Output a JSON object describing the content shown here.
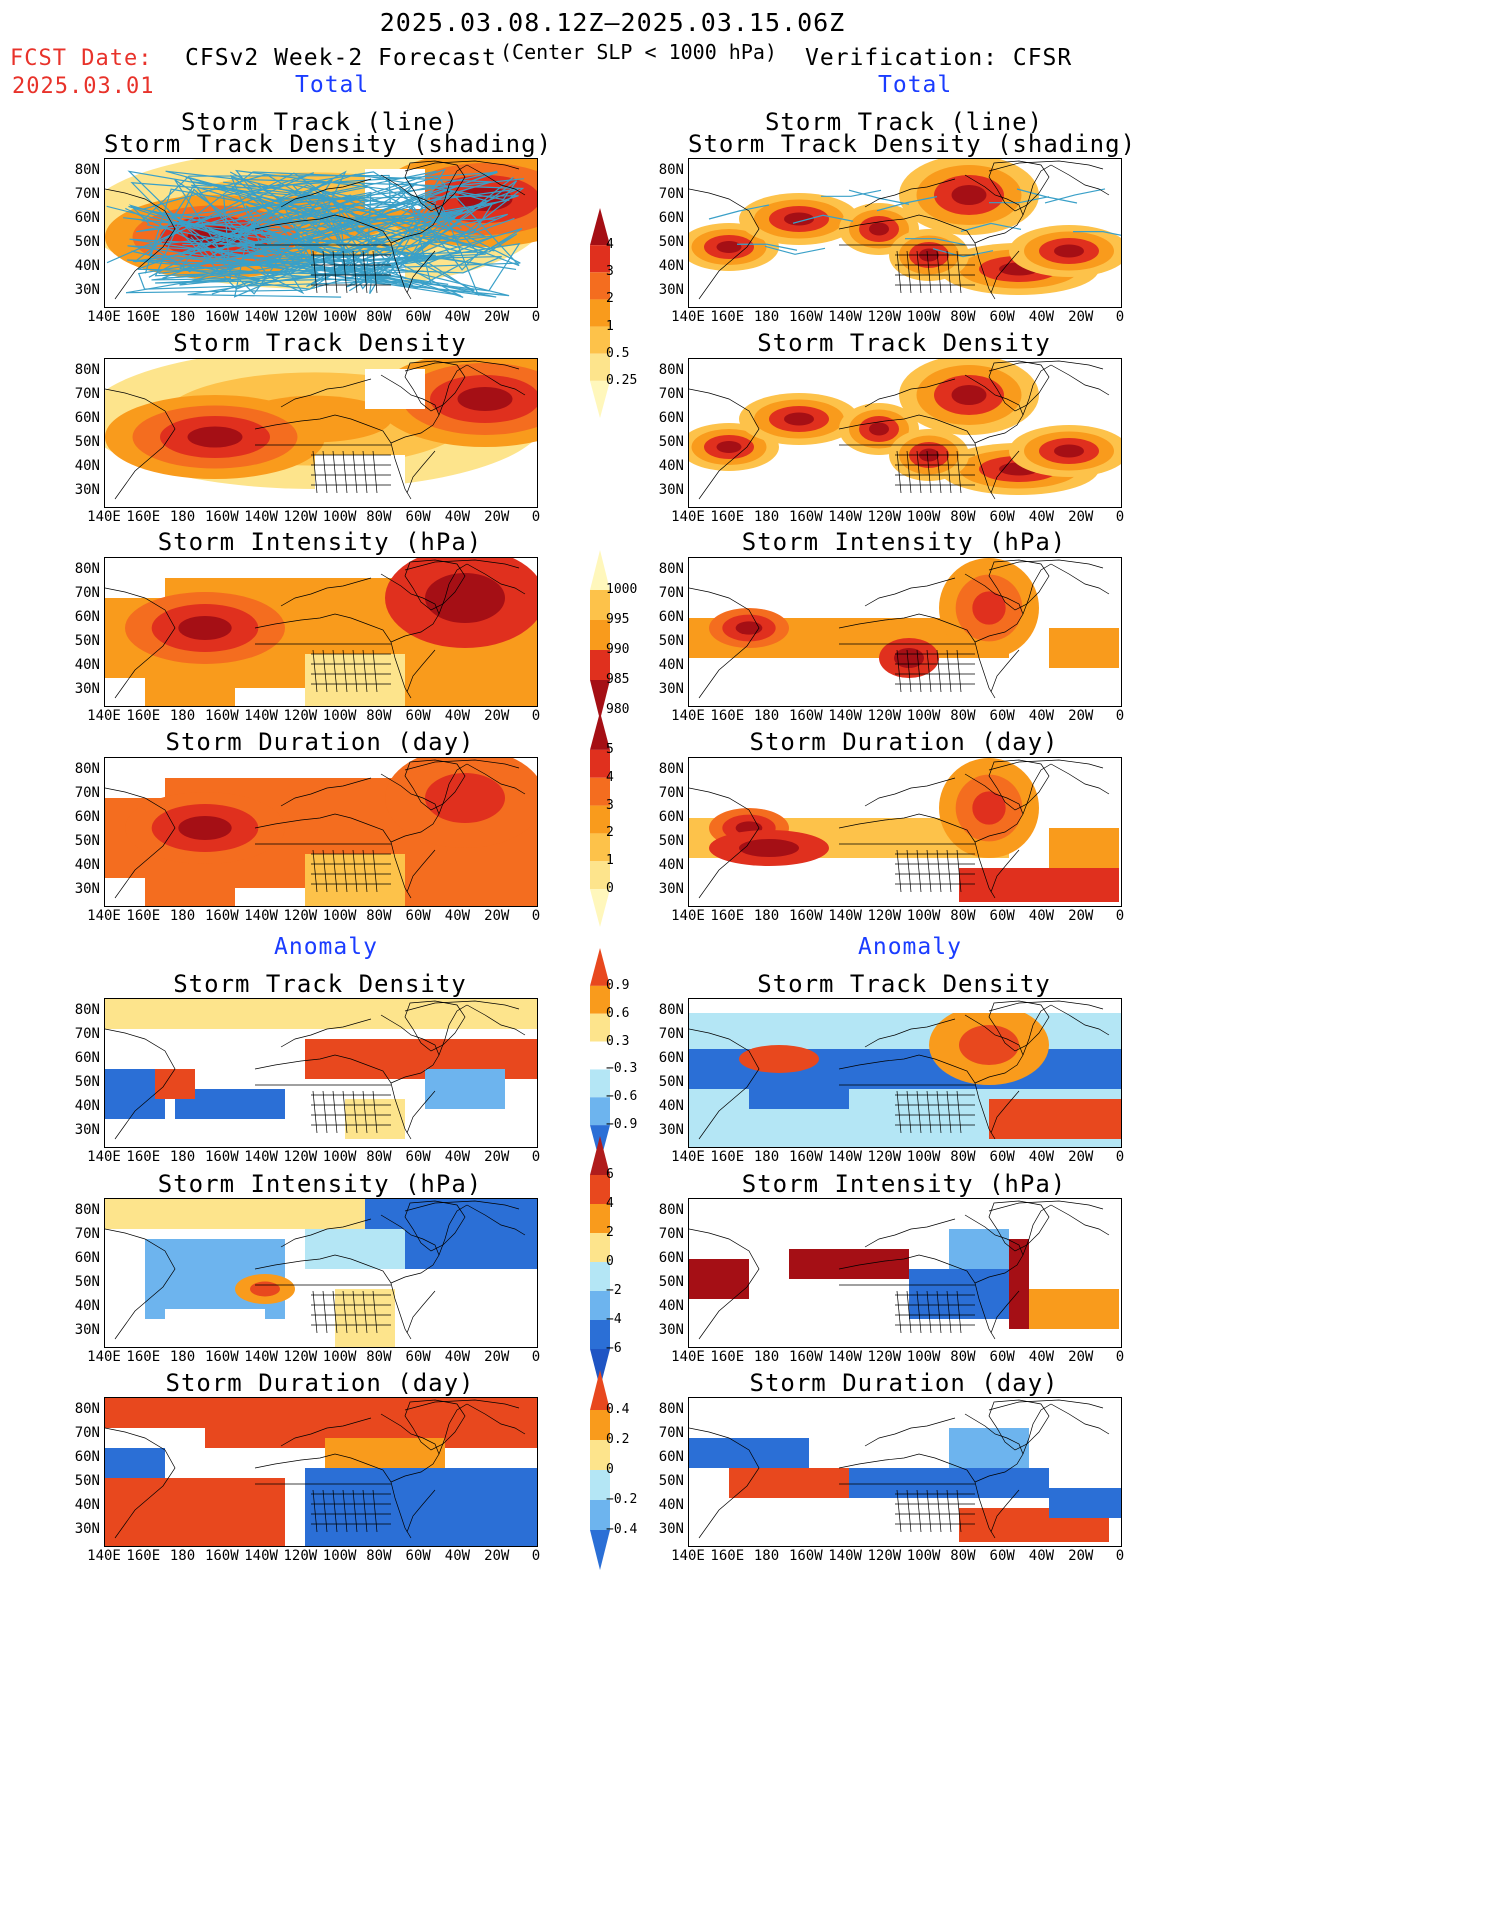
{
  "header": {
    "date_range": "2025.03.08.12Z—2025.03.15.06Z",
    "subtitle": "(Center SLP < 1000 hPa)",
    "fcst_label": "FCST Date:",
    "fcst_date": "2025.03.01",
    "left_title": "CFSv2 Week-2 Forecast",
    "right_title": "Verification: CFSR",
    "total_label": "Total",
    "anomaly_label": "Anomaly"
  },
  "panel_titles": {
    "track_line": "Storm Track (line)",
    "track_shading": "Storm Track Density (shading)",
    "density": "Storm Track Density",
    "intensity": "Storm Intensity (hPa)",
    "duration": "Storm Duration (day)"
  },
  "axes": {
    "lat_labels": [
      "80N",
      "70N",
      "60N",
      "50N",
      "40N",
      "30N"
    ],
    "lon_labels": [
      "140E",
      "160E",
      "180",
      "160W",
      "140W",
      "120W",
      "100W",
      "80W",
      "60W",
      "40W",
      "20W",
      "0"
    ]
  },
  "colorbars": {
    "density_total": {
      "labels": [
        "4",
        "3",
        "2",
        "1",
        "0.5",
        "0.25"
      ],
      "colors": [
        "#a50f15",
        "#e0301e",
        "#f46d1f",
        "#f99b1c",
        "#fdc24a",
        "#fde48c",
        "#fff7bc"
      ]
    },
    "intensity_total": {
      "labels": [
        "1000",
        "995",
        "990",
        "985",
        "980"
      ],
      "colors": [
        "#fff7bc",
        "#fdc24a",
        "#f99b1c",
        "#e0301e",
        "#a50f15"
      ]
    },
    "duration_total": {
      "labels": [
        "5",
        "4",
        "3",
        "2",
        "1",
        "0"
      ],
      "colors": [
        "#a50f15",
        "#e0301e",
        "#f46d1f",
        "#f99b1c",
        "#fdc24a",
        "#fde48c",
        "#fff7bc"
      ]
    },
    "density_anom": {
      "labels": [
        "0.9",
        "0.6",
        "0.3",
        "−0.3",
        "−0.6",
        "−0.9"
      ],
      "colors": [
        "#e8481e",
        "#f99b1c",
        "#fde48c",
        "#ffffff",
        "#b4e6f5",
        "#6db4ee",
        "#2b6fd6"
      ]
    },
    "intensity_anom": {
      "labels": [
        "6",
        "4",
        "2",
        "0",
        "−2",
        "−4",
        "−6"
      ],
      "colors": [
        "#b01c1c",
        "#e8481e",
        "#f99b1c",
        "#fde48c",
        "#b4e6f5",
        "#6db4ee",
        "#2b6fd6",
        "#1f55c4"
      ]
    },
    "duration_anom": {
      "labels": [
        "0.4",
        "0.2",
        "0",
        "−0.2",
        "−0.4"
      ],
      "colors": [
        "#e8481e",
        "#f99b1c",
        "#fde48c",
        "#b4e6f5",
        "#6db4ee",
        "#2b6fd6"
      ]
    }
  }
}
